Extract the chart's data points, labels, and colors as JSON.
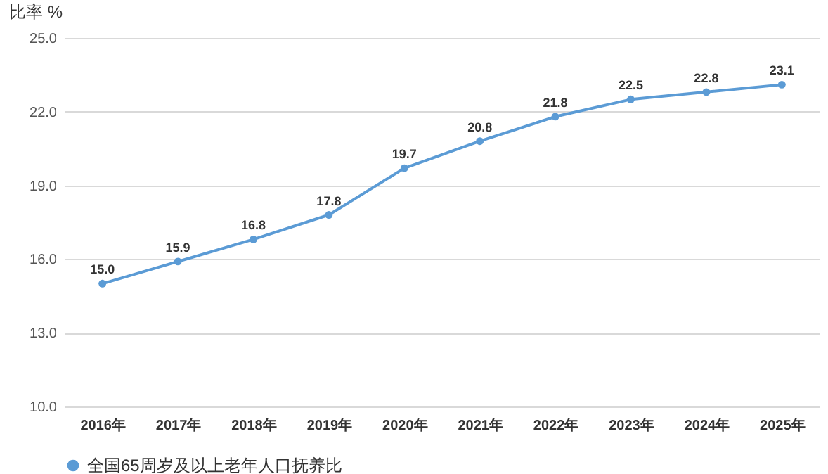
{
  "chart_data": {
    "type": "line",
    "ylabel": "比率 %",
    "categories": [
      "2016年",
      "2017年",
      "2018年",
      "2019年",
      "2020年",
      "2021年",
      "2022年",
      "2023年",
      "2024年",
      "2025年"
    ],
    "series": [
      {
        "name": "全国65周岁及以上老年人口抚养比",
        "color": "#5b9bd5",
        "values": [
          15.0,
          15.9,
          16.8,
          17.8,
          19.7,
          20.8,
          21.8,
          22.5,
          22.8,
          23.1
        ],
        "value_labels": [
          "15.0",
          "15.9",
          "16.8",
          "17.8",
          "19.7",
          "20.8",
          "21.8",
          "22.5",
          "22.8",
          "23.1"
        ]
      }
    ],
    "ylim": [
      10,
      25
    ],
    "yticks": [
      {
        "value": 10,
        "label": "10.0"
      },
      {
        "value": 13,
        "label": "13.0"
      },
      {
        "value": 16,
        "label": "16.0"
      },
      {
        "value": 19,
        "label": "19.0"
      },
      {
        "value": 22,
        "label": "22.0"
      },
      {
        "value": 25,
        "label": "25.0"
      }
    ],
    "grid": "y",
    "legend": "bottom",
    "marker": "circle",
    "line_style": "solid"
  }
}
